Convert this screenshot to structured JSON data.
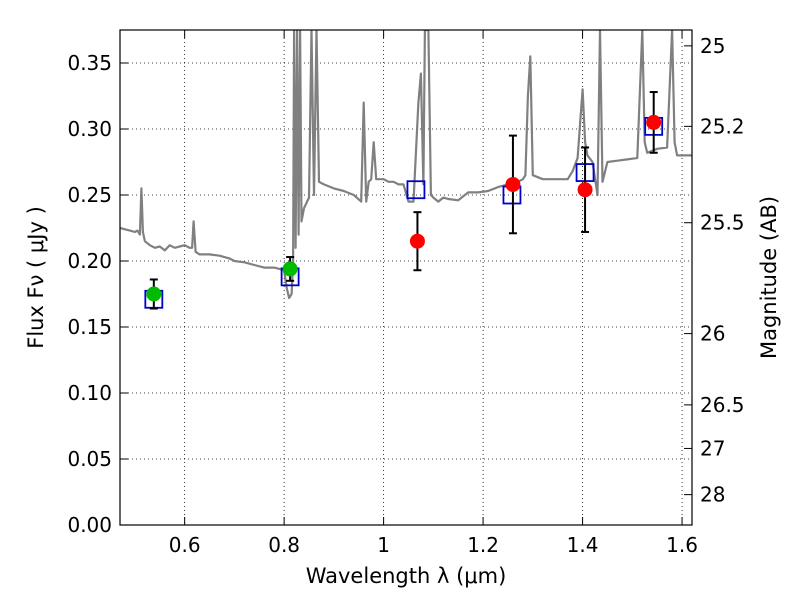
{
  "chart_data": {
    "type": "scatter",
    "title": "",
    "xlabel": "Wavelength  λ (μm)",
    "ylabel": "Flux  Fν  ( μJy )",
    "ylabel_right": "Magnitude (AB)",
    "xlim": [
      0.47,
      1.62
    ],
    "ylim": [
      0.0,
      0.375
    ],
    "grid": true,
    "x_ticks": [
      0.6,
      0.8,
      1.0,
      1.2,
      1.4,
      1.6
    ],
    "x_tick_labels": [
      "0.6",
      "0.8",
      "1",
      "1.2",
      "1.4",
      "1.6"
    ],
    "y_ticks": [
      0.0,
      0.05,
      0.1,
      0.15,
      0.2,
      0.25,
      0.3,
      0.35
    ],
    "y_tick_labels": [
      "0.00",
      "0.05",
      "0.10",
      "0.15",
      "0.20",
      "0.25",
      "0.30",
      "0.35"
    ],
    "right_ticks": [
      {
        "flux": 0.363,
        "label": "25"
      },
      {
        "flux": 0.302,
        "label": "25.2"
      },
      {
        "flux": 0.229,
        "label": "25.5"
      },
      {
        "flux": 0.145,
        "label": "26"
      },
      {
        "flux": 0.091,
        "label": "26.5"
      },
      {
        "flux": 0.058,
        "label": "27"
      },
      {
        "flux": 0.023,
        "label": "28"
      }
    ],
    "colors": {
      "model": "#808080",
      "optical": "#00bb00",
      "nir": "#ff0000",
      "synthetic": "#0000cc",
      "errorbar": "#000000"
    },
    "series": [
      {
        "name": "model spectrum",
        "kind": "line",
        "x": [
          0.47,
          0.48,
          0.49,
          0.5,
          0.505,
          0.51,
          0.513,
          0.516,
          0.52,
          0.53,
          0.54,
          0.55,
          0.56,
          0.57,
          0.58,
          0.59,
          0.6,
          0.61,
          0.615,
          0.618,
          0.622,
          0.63,
          0.65,
          0.67,
          0.69,
          0.7,
          0.72,
          0.74,
          0.76,
          0.78,
          0.8,
          0.805,
          0.81,
          0.815,
          0.818,
          0.82,
          0.823,
          0.826,
          0.829,
          0.832,
          0.835,
          0.84,
          0.85,
          0.855,
          0.86,
          0.865,
          0.87,
          0.88,
          0.9,
          0.92,
          0.94,
          0.955,
          0.96,
          0.965,
          0.97,
          0.975,
          0.98,
          0.985,
          0.99,
          1.0,
          1.01,
          1.02,
          1.03,
          1.04,
          1.05,
          1.06,
          1.07,
          1.075,
          1.08,
          1.083,
          1.085,
          1.09,
          1.095,
          1.1,
          1.11,
          1.12,
          1.13,
          1.15,
          1.17,
          1.19,
          1.21,
          1.23,
          1.25,
          1.27,
          1.28,
          1.285,
          1.29,
          1.295,
          1.3,
          1.32,
          1.35,
          1.37,
          1.38,
          1.39,
          1.4,
          1.405,
          1.41,
          1.42,
          1.43,
          1.435,
          1.44,
          1.45,
          1.47,
          1.49,
          1.51,
          1.52,
          1.525,
          1.53,
          1.55,
          1.57,
          1.58,
          1.585,
          1.59,
          1.6,
          1.62
        ],
        "y": [
          0.225,
          0.224,
          0.223,
          0.222,
          0.223,
          0.22,
          0.255,
          0.222,
          0.215,
          0.212,
          0.21,
          0.211,
          0.208,
          0.212,
          0.21,
          0.211,
          0.212,
          0.21,
          0.21,
          0.23,
          0.207,
          0.205,
          0.205,
          0.204,
          0.202,
          0.2,
          0.199,
          0.197,
          0.195,
          0.195,
          0.193,
          0.18,
          0.172,
          0.175,
          0.2,
          0.375,
          0.21,
          0.375,
          0.22,
          0.375,
          0.23,
          0.24,
          0.248,
          0.375,
          0.25,
          0.375,
          0.26,
          0.258,
          0.255,
          0.253,
          0.25,
          0.245,
          0.32,
          0.245,
          0.26,
          0.262,
          0.29,
          0.262,
          0.262,
          0.262,
          0.26,
          0.26,
          0.258,
          0.258,
          0.245,
          0.245,
          0.32,
          0.342,
          0.258,
          0.375,
          0.375,
          0.375,
          0.25,
          0.248,
          0.245,
          0.248,
          0.247,
          0.246,
          0.252,
          0.252,
          0.253,
          0.256,
          0.258,
          0.26,
          0.262,
          0.265,
          0.325,
          0.355,
          0.265,
          0.262,
          0.262,
          0.262,
          0.268,
          0.278,
          0.33,
          0.29,
          0.28,
          0.275,
          0.25,
          0.375,
          0.26,
          0.275,
          0.276,
          0.277,
          0.278,
          0.375,
          0.29,
          0.282,
          0.285,
          0.286,
          0.375,
          0.29,
          0.28,
          0.28,
          0.28
        ]
      },
      {
        "name": "optical photometry",
        "kind": "points",
        "x": [
          0.538,
          0.812
        ],
        "y": [
          0.175,
          0.194
        ],
        "err": [
          0.011,
          0.009
        ]
      },
      {
        "name": "near-infrared photometry",
        "kind": "points",
        "x": [
          1.068,
          1.26,
          1.405,
          1.543
        ],
        "y": [
          0.215,
          0.258,
          0.254,
          0.305
        ],
        "err": [
          0.022,
          0.037,
          0.032,
          0.023
        ]
      },
      {
        "name": "model synthetic photometry",
        "kind": "squares",
        "x": [
          0.538,
          0.812,
          1.065,
          1.258,
          1.405,
          1.543
        ],
        "y": [
          0.171,
          0.188,
          0.254,
          0.25,
          0.267,
          0.302
        ]
      }
    ]
  }
}
